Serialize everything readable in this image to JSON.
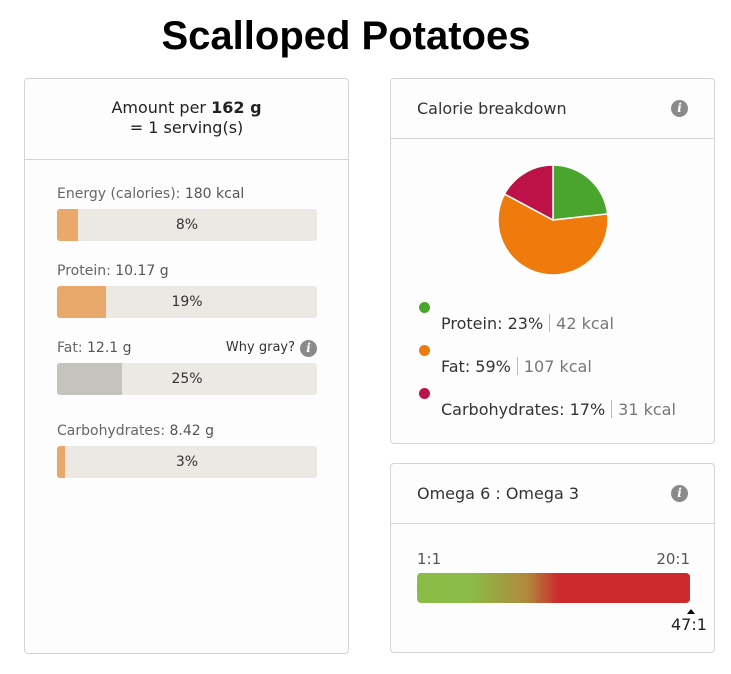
{
  "title": "Scalloped Potatoes",
  "amount": {
    "prefix": "Amount per",
    "weight": "162 g",
    "serving": "= 1 serving(s)"
  },
  "nutrients": [
    {
      "label": "Energy (calories):",
      "value": "180 kcal",
      "percent_text": "8%",
      "percent": 8,
      "style": "orange"
    },
    {
      "label": "Protein:",
      "value": "10.17 g",
      "percent_text": "19%",
      "percent": 19,
      "style": "orange"
    },
    {
      "label": "Fat:",
      "value": "12.1 g",
      "percent_text": "25%",
      "percent": 25,
      "style": "gray"
    },
    {
      "label": "Carbohydrates:",
      "value": "8.42 g",
      "percent_text": "3%",
      "percent": 3,
      "style": "orange"
    }
  ],
  "why_gray": {
    "label": "Why gray?",
    "icon": "info-icon"
  },
  "calorie_breakdown": {
    "title": "Calorie breakdown",
    "icon": "info-icon",
    "slices": [
      {
        "name": "Protein",
        "percent": 23,
        "percent_text": "23%",
        "kcal": "42 kcal",
        "color": "#4aa52e"
      },
      {
        "name": "Fat",
        "percent": 59,
        "percent_text": "59%",
        "kcal": "107 kcal",
        "color": "#ee7b0c"
      },
      {
        "name": "Carbohydrates",
        "percent": 17,
        "percent_text": "17%",
        "kcal": "31 kcal",
        "color": "#bd1248"
      }
    ]
  },
  "omega": {
    "title": "Omega 6 : Omega 3",
    "icon": "info-icon",
    "min_label": "1:1",
    "max_label": "20:1",
    "value_label": "47:1",
    "colors": {
      "good": "#8bbb47",
      "bad": "#cd2a2e"
    }
  }
}
